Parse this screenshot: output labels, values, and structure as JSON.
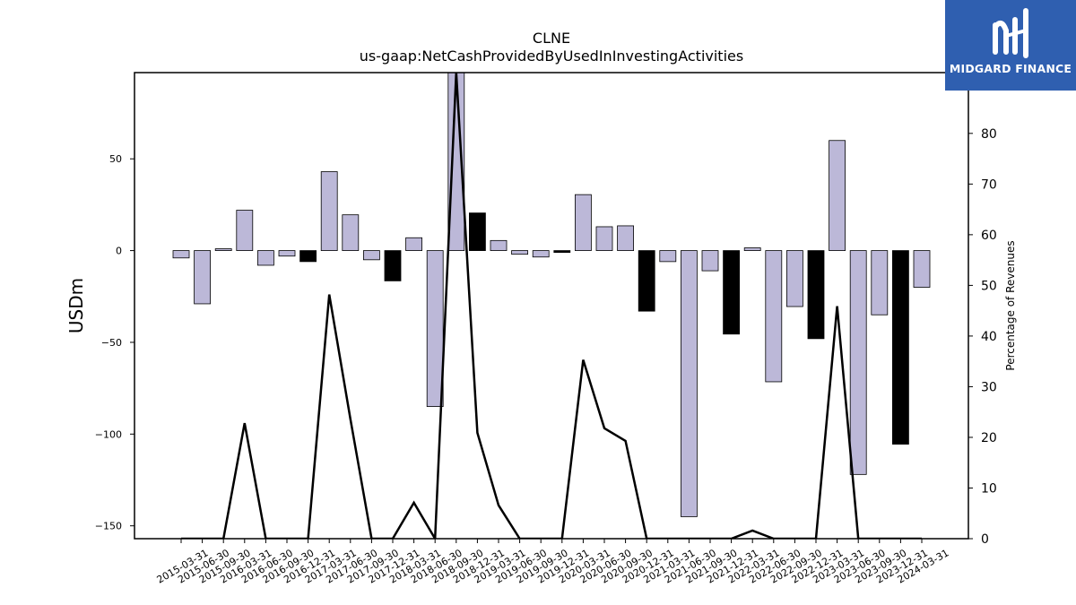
{
  "brand": {
    "name": "MIDGARD FINANCE",
    "bg": "#2f5fb0",
    "text_color": "#ffffff"
  },
  "chart_data": {
    "type": "bar",
    "title": "CLNE",
    "subtitle": "us-gaap:NetCashProvidedByUsedInInvestingActivities",
    "ylabel": "USDm",
    "y2label": "Percentage of Revenues",
    "ylim": [
      -157,
      97
    ],
    "y2lim": [
      0,
      92
    ],
    "yticks": [
      -150,
      -100,
      -50,
      0,
      50
    ],
    "y2ticks": [
      0,
      10,
      20,
      30,
      40,
      50,
      60,
      70,
      80
    ],
    "categories": [
      "2015-03-31",
      "2015-06-30",
      "2015-09-30",
      "2016-03-31",
      "2016-06-30",
      "2016-09-30",
      "2016-12-31",
      "2017-03-31",
      "2017-06-30",
      "2017-09-30",
      "2017-12-31",
      "2018-03-31",
      "2018-06-30",
      "2018-09-30",
      "2018-12-31",
      "2019-03-31",
      "2019-06-30",
      "2019-09-30",
      "2019-12-31",
      "2020-03-31",
      "2020-06-30",
      "2020-09-30",
      "2020-12-31",
      "2021-03-31",
      "2021-06-30",
      "2021-09-30",
      "2021-12-31",
      "2022-03-31",
      "2022-06-30",
      "2022-09-30",
      "2022-12-31",
      "2023-03-31",
      "2023-06-30",
      "2023-09-30",
      "2023-12-31",
      "2024-03-31"
    ],
    "series": [
      {
        "type": "bar",
        "values": [
          -4,
          -29,
          1,
          22,
          -8,
          -3,
          -6,
          43,
          19.5,
          -5,
          -16.5,
          7,
          -85,
          97,
          20.5,
          5.5,
          -2,
          -3.5,
          -1,
          30.5,
          13,
          13.5,
          -33,
          -6,
          -145,
          -11,
          -45.5,
          1.5,
          -71.5,
          -30.5,
          -48,
          60,
          -122,
          -35,
          -105.5,
          -20
        ],
        "colors": [
          "#bcb8d8",
          "#bcb8d8",
          "#bcb8d8",
          "#bcb8d8",
          "#bcb8d8",
          "#bcb8d8",
          "#000000",
          "#bcb8d8",
          "#bcb8d8",
          "#bcb8d8",
          "#000000",
          "#bcb8d8",
          "#bcb8d8",
          "#bcb8d8",
          "#000000",
          "#bcb8d8",
          "#bcb8d8",
          "#bcb8d8",
          "#000000",
          "#bcb8d8",
          "#bcb8d8",
          "#bcb8d8",
          "#000000",
          "#bcb8d8",
          "#bcb8d8",
          "#bcb8d8",
          "#000000",
          "#bcb8d8",
          "#bcb8d8",
          "#bcb8d8",
          "#000000",
          "#bcb8d8",
          "#bcb8d8",
          "#bcb8d8",
          "#000000",
          "#bcb8d8"
        ]
      },
      {
        "type": "line",
        "axis": "right",
        "color": "#000000",
        "values": [
          0,
          0,
          0,
          22.8,
          0,
          0,
          0,
          48.2,
          23.6,
          0,
          0,
          7.1,
          0,
          92,
          20.9,
          6.6,
          0,
          0,
          0,
          35.3,
          21.8,
          19.3,
          0,
          0,
          0,
          0,
          0,
          1.6,
          0,
          0,
          0,
          45.9,
          0,
          0,
          0,
          0
        ]
      }
    ],
    "grid": false,
    "legend": "none"
  }
}
